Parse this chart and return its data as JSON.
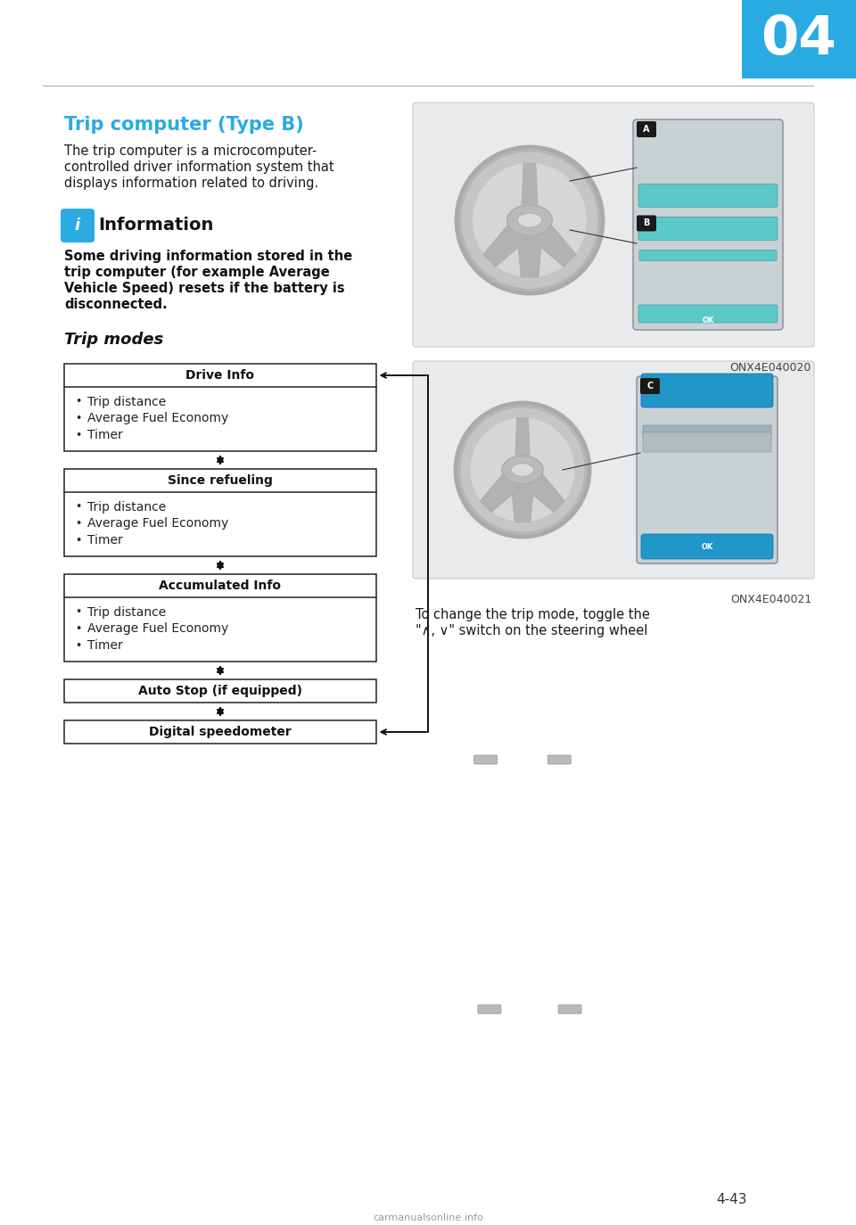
{
  "page_number": "04",
  "page_footer": "4-43",
  "footer_url": "carmanualsonline.info",
  "bg_color": "#ffffff",
  "header_line_color": "#aaaaaa",
  "tab_color": "#29abe2",
  "section_title": "Trip computer (Type B)",
  "section_title_color": "#29abe2",
  "section_body_line1": "The trip computer is a microcomputer-",
  "section_body_line2": "controlled driver information system that",
  "section_body_line3": "displays information related to driving.",
  "info_icon_color": "#29abe2",
  "info_heading": "Information",
  "info_body_line1": "Some driving information stored in the",
  "info_body_line2": "trip computer (for example Average",
  "info_body_line3": "Vehicle Speed) resets if the battery is",
  "info_body_line4": "disconnected.",
  "trip_modes_title": "Trip modes",
  "boxes": [
    {
      "header": "Drive Info",
      "items": [
        "Trip distance",
        "Average Fuel Economy",
        "Timer"
      ],
      "arrow_right": true
    },
    {
      "header": "Since refueling",
      "items": [
        "Trip distance",
        "Average Fuel Economy",
        "Timer"
      ],
      "arrow_right": false
    },
    {
      "header": "Accumulated Info",
      "items": [
        "Trip distance",
        "Average Fuel Economy",
        "Timer"
      ],
      "arrow_right": false
    },
    {
      "header": "Auto Stop (if equipped)",
      "items": [],
      "arrow_right": false
    },
    {
      "header": "Digital speedometer",
      "items": [],
      "arrow_right": true
    }
  ],
  "caption1": "ONX4E040020",
  "caption2": "ONX4E040021",
  "bottom_caption_line1": "To change the trip mode, toggle the",
  "bottom_caption_line2": "\"∧, ∨\" switch on the steering wheel",
  "sw_color_outer": "#c0c2c4",
  "sw_color_rim": "#a8aaac",
  "sw_color_hub": "#b8babb",
  "sw_color_spoke": "#b0b2b4",
  "panel_teal": "#5cc8c8",
  "panel_bg": "#d8e8e8",
  "panel_blue": "#2196c8",
  "img_bg": "#e8eaeb",
  "img_border": "#cccccc"
}
